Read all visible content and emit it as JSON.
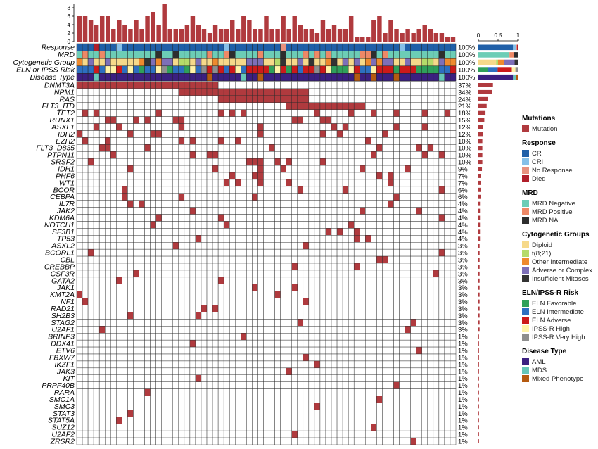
{
  "chart_data": {
    "type": "heatmap",
    "title": "",
    "bar_axis_ticks": [
      "8",
      "6",
      "4",
      "2",
      "0"
    ],
    "frac_axis_ticks": [
      "0",
      "0.5",
      "1"
    ],
    "n_samples": 67,
    "top_counts": [
      6,
      6,
      5,
      4,
      6,
      6,
      3,
      5,
      4,
      3,
      5,
      3,
      6,
      7,
      4,
      9,
      3,
      3,
      3,
      4,
      6,
      4,
      3,
      2,
      4,
      3,
      3,
      5,
      3,
      6,
      5,
      3,
      3,
      6,
      3,
      3,
      6,
      3,
      6,
      4,
      3,
      3,
      2,
      5,
      3,
      4,
      3,
      3,
      6,
      1,
      1,
      1,
      5,
      6,
      2,
      5,
      3,
      2,
      3,
      2,
      3,
      4,
      3,
      2,
      2,
      1,
      1
    ],
    "annotation_rows": [
      {
        "label": "Response",
        "pct": "100%"
      },
      {
        "label": "MRD",
        "pct": "100%"
      },
      {
        "label": "Cytogenetic Group",
        "pct": "100%"
      },
      {
        "label": "ELN or IPSS Risk",
        "pct": "100%"
      },
      {
        "label": "Disease Type",
        "pct": "100%"
      }
    ],
    "annotation_fractions": [
      [
        [
          "#1f5fa8",
          0.88
        ],
        [
          "#86c0e8",
          0.07
        ],
        [
          "#e8917e",
          0.03
        ],
        [
          "#b01e2a",
          0.02
        ]
      ],
      [
        [
          "#6ccdb6",
          0.79
        ],
        [
          "#ee8866",
          0.11
        ],
        [
          "#2e2e2e",
          0.1
        ]
      ],
      [
        [
          "#f6d98a",
          0.45
        ],
        [
          "#b5db6a",
          0.05
        ],
        [
          "#ee8a2e",
          0.16
        ],
        [
          "#7d6fb8",
          0.26
        ],
        [
          "#333333",
          0.08
        ]
      ],
      [
        [
          "#2fa05a",
          0.25
        ],
        [
          "#2d6fc0",
          0.24
        ],
        [
          "#cc1a1a",
          0.36
        ],
        [
          "#fff3a8",
          0.09
        ],
        [
          "#8e8e8e",
          0.06
        ]
      ],
      [
        [
          "#3b1f80",
          0.88
        ],
        [
          "#66c6b8",
          0.08
        ],
        [
          "#b55a10",
          0.04
        ]
      ]
    ],
    "mutations": [
      {
        "gene": "DNMT3A",
        "pct": "37%",
        "frac": 0.37
      },
      {
        "gene": "NPM1",
        "pct": "34%",
        "frac": 0.34
      },
      {
        "gene": "RAS",
        "pct": "24%",
        "frac": 0.24
      },
      {
        "gene": "FLT3_ITD",
        "pct": "21%",
        "frac": 0.21
      },
      {
        "gene": "TET2",
        "pct": "18%",
        "frac": 0.18
      },
      {
        "gene": "RUNX1",
        "pct": "15%",
        "frac": 0.15
      },
      {
        "gene": "ASXL1",
        "pct": "12%",
        "frac": 0.12
      },
      {
        "gene": "IDH2",
        "pct": "12%",
        "frac": 0.12
      },
      {
        "gene": "EZH2",
        "pct": "10%",
        "frac": 0.1
      },
      {
        "gene": "FLT3_D835",
        "pct": "10%",
        "frac": 0.1
      },
      {
        "gene": "PTPN11",
        "pct": "10%",
        "frac": 0.1
      },
      {
        "gene": "SRSF2",
        "pct": "10%",
        "frac": 0.1
      },
      {
        "gene": "IDH1",
        "pct": "9%",
        "frac": 0.09
      },
      {
        "gene": "PHF6",
        "pct": "7%",
        "frac": 0.07
      },
      {
        "gene": "WT1",
        "pct": "7%",
        "frac": 0.07
      },
      {
        "gene": "BCOR",
        "pct": "6%",
        "frac": 0.06
      },
      {
        "gene": "CEBPA",
        "pct": "6%",
        "frac": 0.06
      },
      {
        "gene": "IL7R",
        "pct": "4%",
        "frac": 0.04
      },
      {
        "gene": "JAK2",
        "pct": "4%",
        "frac": 0.04
      },
      {
        "gene": "KDM6A",
        "pct": "4%",
        "frac": 0.04
      },
      {
        "gene": "NOTCH1",
        "pct": "4%",
        "frac": 0.04
      },
      {
        "gene": "SF3B1",
        "pct": "4%",
        "frac": 0.04
      },
      {
        "gene": "TP53",
        "pct": "4%",
        "frac": 0.04
      },
      {
        "gene": "ASXL2",
        "pct": "3%",
        "frac": 0.03
      },
      {
        "gene": "BCORL1",
        "pct": "3%",
        "frac": 0.03
      },
      {
        "gene": "CBL",
        "pct": "3%",
        "frac": 0.03
      },
      {
        "gene": "CREBBP",
        "pct": "3%",
        "frac": 0.03
      },
      {
        "gene": "CSF3R",
        "pct": "3%",
        "frac": 0.03
      },
      {
        "gene": "GATA2",
        "pct": "3%",
        "frac": 0.03
      },
      {
        "gene": "JAK1",
        "pct": "3%",
        "frac": 0.03
      },
      {
        "gene": "KMT2A",
        "pct": "3%",
        "frac": 0.03
      },
      {
        "gene": "NF1",
        "pct": "3%",
        "frac": 0.03
      },
      {
        "gene": "RAD21",
        "pct": "3%",
        "frac": 0.03
      },
      {
        "gene": "SH2B3",
        "pct": "3%",
        "frac": 0.03
      },
      {
        "gene": "STAG2",
        "pct": "3%",
        "frac": 0.03
      },
      {
        "gene": "U2AF1",
        "pct": "3%",
        "frac": 0.03
      },
      {
        "gene": "BRINP3",
        "pct": "1%",
        "frac": 0.015
      },
      {
        "gene": "DDX41",
        "pct": "1%",
        "frac": 0.015
      },
      {
        "gene": "ETV6",
        "pct": "1%",
        "frac": 0.015
      },
      {
        "gene": "FBXW7",
        "pct": "1%",
        "frac": 0.015
      },
      {
        "gene": "IKZF1",
        "pct": "1%",
        "frac": 0.015
      },
      {
        "gene": "JAK3",
        "pct": "1%",
        "frac": 0.015
      },
      {
        "gene": "KIT",
        "pct": "1%",
        "frac": 0.015
      },
      {
        "gene": "PRPF40B",
        "pct": "1%",
        "frac": 0.015
      },
      {
        "gene": "RARA",
        "pct": "1%",
        "frac": 0.015
      },
      {
        "gene": "SMC1A",
        "pct": "1%",
        "frac": 0.015
      },
      {
        "gene": "SMC3",
        "pct": "1%",
        "frac": 0.015
      },
      {
        "gene": "STAT3",
        "pct": "1%",
        "frac": 0.015
      },
      {
        "gene": "STAT5A",
        "pct": "1%",
        "frac": 0.015
      },
      {
        "gene": "SUZ12",
        "pct": "1%",
        "frac": 0.015
      },
      {
        "gene": "U2AF2",
        "pct": "1%",
        "frac": 0.015
      },
      {
        "gene": "ZRSR2",
        "pct": "1%",
        "frac": 0.015
      }
    ],
    "mutation_color": "#b03a3e"
  },
  "legend": [
    {
      "title": "Mutations",
      "items": [
        {
          "label": "Mutation",
          "color": "#b03a3e"
        }
      ]
    },
    {
      "title": "Response",
      "items": [
        {
          "label": "CR",
          "color": "#1f5fa8"
        },
        {
          "label": "CRi",
          "color": "#86c0e8"
        },
        {
          "label": "No Response",
          "color": "#e8917e"
        },
        {
          "label": "Died",
          "color": "#b01e2a"
        }
      ]
    },
    {
      "title": "MRD",
      "items": [
        {
          "label": "MRD Negative",
          "color": "#6ccdb6"
        },
        {
          "label": "MRD Positive",
          "color": "#ee8866"
        },
        {
          "label": "MRD NA",
          "color": "#2e2e2e"
        }
      ]
    },
    {
      "title": "Cytogenetic Groups",
      "items": [
        {
          "label": "Diploid",
          "color": "#f6d98a"
        },
        {
          "label": "t(8;21)",
          "color": "#b5db6a"
        },
        {
          "label": "Other Intermediate",
          "color": "#ee8a2e"
        },
        {
          "label": "Adverse or Complex",
          "color": "#7d6fb8"
        },
        {
          "label": "Insufficient Mitoses",
          "color": "#333333"
        }
      ]
    },
    {
      "title": "ELN/IPSS-R Risk",
      "items": [
        {
          "label": "ELN Favorable",
          "color": "#2fa05a"
        },
        {
          "label": "ELN Intermediate",
          "color": "#2d6fc0"
        },
        {
          "label": "ELN Adverse",
          "color": "#cc1a1a"
        },
        {
          "label": "IPSS-R High",
          "color": "#fff3a8"
        },
        {
          "label": "IPSS-R Very High",
          "color": "#8e8e8e"
        }
      ]
    },
    {
      "title": "Disease Type",
      "items": [
        {
          "label": "AML",
          "color": "#3b1f80"
        },
        {
          "label": "MDS",
          "color": "#66c6b8"
        },
        {
          "label": "Mixed Phenotype",
          "color": "#b55a10"
        }
      ]
    }
  ]
}
